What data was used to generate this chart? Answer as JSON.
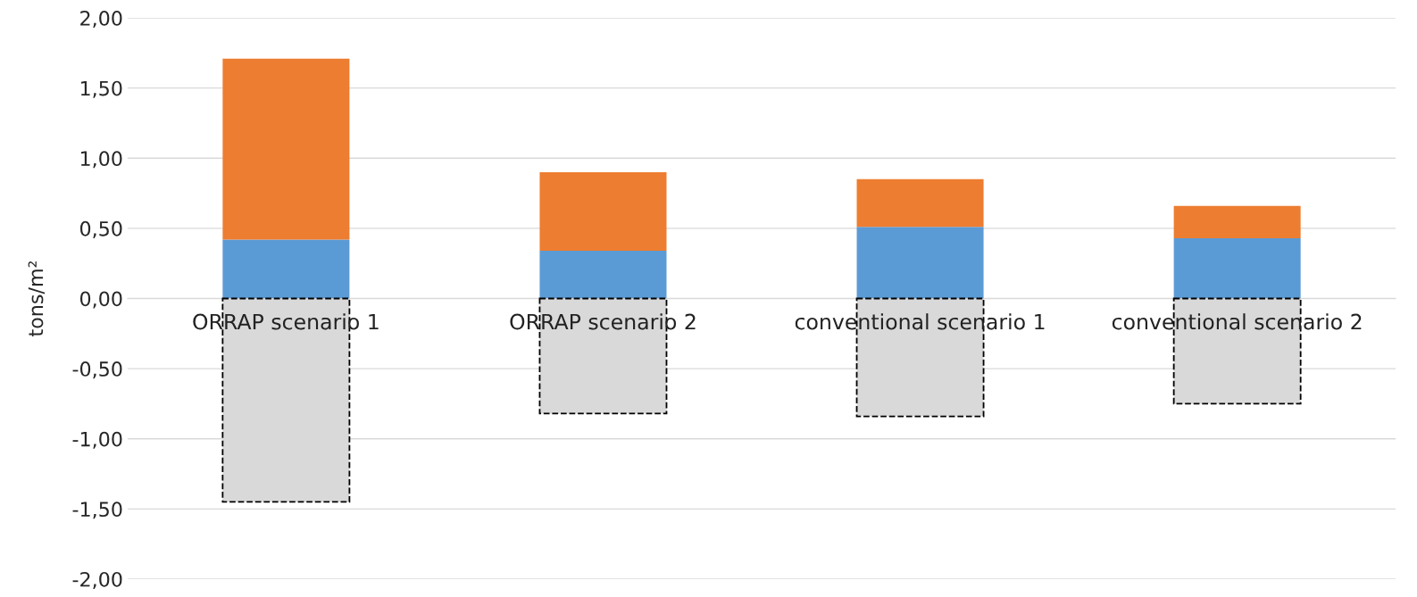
{
  "chart_data": {
    "type": "bar",
    "stacked": true,
    "ylabel": "tons/m²",
    "categories": [
      "ORRAP scenario 1",
      "ORRAP scenario 2",
      "conventional scenario 1",
      "conventional scenario 2"
    ],
    "series": [
      {
        "color": "#5b9bd5",
        "values": [
          0.42,
          0.34,
          0.51,
          0.43
        ]
      },
      {
        "color": "#ed7d31",
        "values": [
          1.29,
          0.56,
          0.34,
          0.23
        ]
      },
      {
        "color": "#d9d9d9",
        "values": [
          -1.45,
          -0.82,
          -0.84,
          -0.75
        ],
        "line_style": "dashed"
      }
    ],
    "ylim": [
      -2,
      2
    ],
    "yticks": [
      {
        "value": -2,
        "label": "-2,00"
      },
      {
        "value": -1.5,
        "label": "-1,50"
      },
      {
        "value": -1,
        "label": "-1,00"
      },
      {
        "value": -0.5,
        "label": "-0,50"
      },
      {
        "value": 0,
        "label": "0,00"
      },
      {
        "value": 0.5,
        "label": "0,50"
      },
      {
        "value": 1,
        "label": "1,00"
      },
      {
        "value": 1.5,
        "label": "1,50"
      },
      {
        "value": 2,
        "label": "2,00"
      }
    ],
    "grid": "y",
    "legend": false
  }
}
